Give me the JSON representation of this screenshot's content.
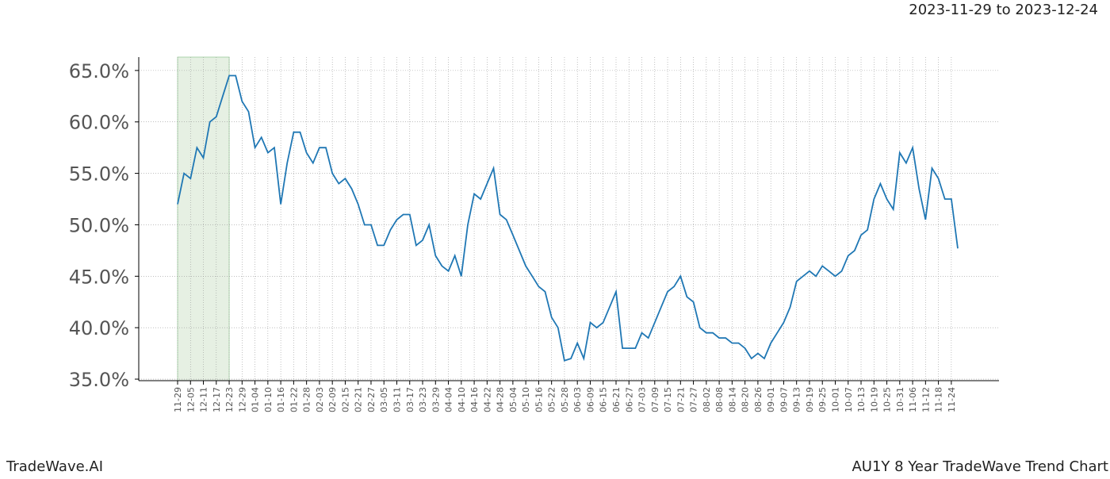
{
  "header": {
    "date_range": "2023-11-29 to 2023-12-24"
  },
  "footer": {
    "brand": "TradeWave.AI",
    "chart_name": "AU1Y 8 Year TradeWave Trend Chart"
  },
  "chart_data": {
    "type": "line",
    "categories": [
      "11-29",
      null,
      "12-05",
      null,
      "12-11",
      null,
      "12-17",
      null,
      "12-23",
      null,
      "12-29",
      null,
      "01-04",
      null,
      "01-10",
      null,
      "01-16",
      null,
      "01-22",
      null,
      "01-28",
      null,
      "02-03",
      null,
      "02-09",
      null,
      "02-15",
      null,
      "02-21",
      null,
      "02-27",
      null,
      "03-05",
      null,
      "03-11",
      null,
      "03-17",
      null,
      "03-23",
      null,
      "03-29",
      null,
      "04-04",
      null,
      "04-10",
      null,
      "04-16",
      null,
      "04-22",
      null,
      "04-28",
      null,
      "05-04",
      null,
      "05-10",
      null,
      "05-16",
      null,
      "05-22",
      null,
      "05-28",
      null,
      "06-03",
      null,
      "06-09",
      null,
      "06-15",
      null,
      "06-21",
      null,
      "06-27",
      null,
      "07-03",
      null,
      "07-09",
      null,
      "07-15",
      null,
      "07-21",
      null,
      "07-27",
      null,
      "08-02",
      null,
      "08-08",
      null,
      "08-14",
      null,
      "08-20",
      null,
      "08-26",
      null,
      "09-01",
      null,
      "09-07",
      null,
      "09-13",
      null,
      "09-19",
      null,
      "09-25",
      null,
      "10-01",
      null,
      "10-07",
      null,
      "10-13",
      null,
      "10-19",
      null,
      "10-25",
      null,
      "10-31",
      null,
      "11-06",
      null,
      "11-12",
      null,
      "11-18",
      null,
      "11-24",
      null
    ],
    "series": [
      {
        "color": "#1f77b4",
        "values": [
          52,
          55,
          54.5,
          57.5,
          56.5,
          60,
          60.5,
          62.5,
          64.5,
          64.5,
          62,
          61,
          57.5,
          58.5,
          57,
          57.5,
          52,
          56,
          59,
          59,
          57,
          56,
          57.5,
          57.5,
          55,
          54,
          54.5,
          53.5,
          52,
          50,
          50,
          48,
          48,
          49.5,
          50.5,
          51,
          51,
          48,
          48.5,
          50,
          47,
          46,
          45.5,
          47,
          45,
          50,
          53,
          52.5,
          54,
          55.5,
          51,
          50.5,
          49,
          47.5,
          46,
          45,
          44,
          43.5,
          41,
          40,
          36.8,
          37,
          38.5,
          37,
          40.5,
          40,
          40.5,
          42,
          43.5,
          38,
          38,
          38,
          39.5,
          39,
          40.5,
          42,
          43.5,
          44,
          45,
          43,
          42.5,
          40,
          39.5,
          39.5,
          39,
          39,
          38.5,
          38.5,
          38,
          37,
          37.5,
          37,
          38.5,
          39.5,
          40.5,
          42,
          44.5,
          45,
          45.5,
          45,
          46,
          45.5,
          45,
          45.5,
          47,
          47.5,
          49,
          49.5,
          52.5,
          54,
          52.5,
          51.5,
          57,
          56,
          57.5,
          53.5,
          50.5,
          55.5,
          54.5,
          52.5,
          52.5,
          47.7
        ]
      }
    ],
    "ylim": [
      34.85,
      66.3
    ],
    "yticks": [
      {
        "value": 35,
        "label": "35.0%"
      },
      {
        "value": 40,
        "label": "40.0%"
      },
      {
        "value": 45,
        "label": "45.0%"
      },
      {
        "value": 50,
        "label": "50.0%"
      },
      {
        "value": 55,
        "label": "55.0%"
      },
      {
        "value": 60,
        "label": "60.0%"
      },
      {
        "value": 65,
        "label": "65.0%"
      }
    ],
    "grid": true,
    "highlight": {
      "from": "11-29",
      "to": "12-23",
      "color": "#e6f0e3"
    }
  }
}
